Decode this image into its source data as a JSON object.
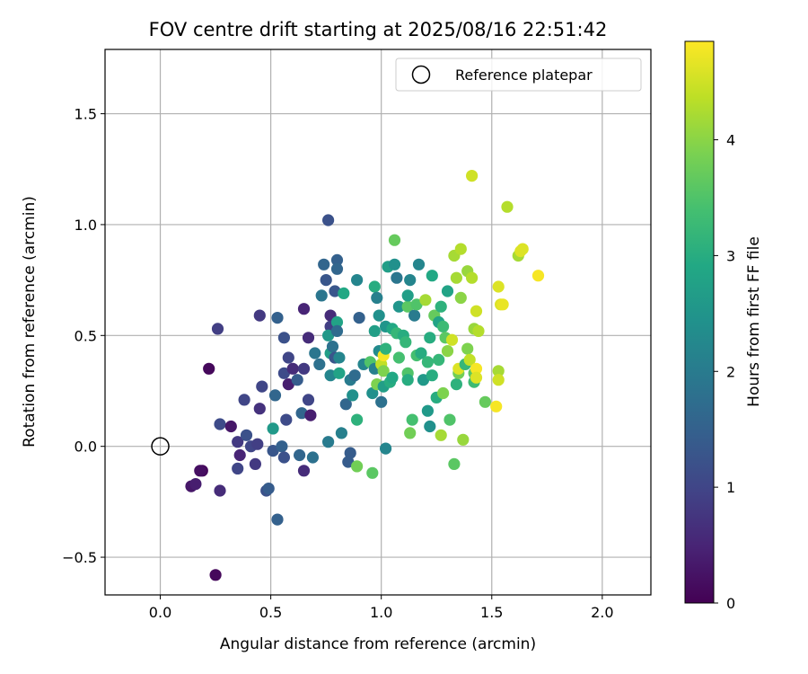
{
  "chart_data": {
    "type": "scatter",
    "title": "FOV centre drift starting at 2025/08/16 22:51:42",
    "xlabel": "Angular distance from reference (arcmin)",
    "ylabel": "Rotation from reference (arcmin)",
    "xlim": [
      -0.25,
      2.22
    ],
    "ylim": [
      -0.67,
      1.79
    ],
    "xticks": [
      0.0,
      0.5,
      1.0,
      1.5,
      2.0
    ],
    "xtick_labels": [
      "0.0",
      "0.5",
      "1.0",
      "1.5",
      "2.0"
    ],
    "yticks": [
      -0.5,
      0.0,
      0.5,
      1.0,
      1.5
    ],
    "ytick_labels": [
      "−0.5",
      "0.0",
      "0.5",
      "1.0",
      "1.5"
    ],
    "grid": true,
    "legend": {
      "placement": "top-right",
      "entries": [
        "Reference platepar"
      ]
    },
    "reference_point": {
      "x": 0.0,
      "y": 0.0,
      "label": "Reference platepar"
    },
    "colorbar": {
      "label": "Hours from first FF file",
      "colormap": "viridis",
      "range": [
        0,
        4.85
      ],
      "ticks": [
        0,
        1,
        2,
        3,
        4
      ],
      "tick_labels": [
        "0",
        "1",
        "2",
        "3",
        "4"
      ]
    },
    "points": [
      [
        0.22,
        0.35,
        0.1
      ],
      [
        0.26,
        0.53,
        0.9
      ],
      [
        0.19,
        -0.11,
        0.1
      ],
      [
        0.18,
        -0.11,
        0.2
      ],
      [
        0.14,
        -0.18,
        0.3
      ],
      [
        0.16,
        -0.17,
        0.4
      ],
      [
        0.25,
        -0.58,
        0.1
      ],
      [
        0.27,
        -0.2,
        0.6
      ],
      [
        0.27,
        0.1,
        1.1
      ],
      [
        0.32,
        0.09,
        0.3
      ],
      [
        0.35,
        0.02,
        0.8
      ],
      [
        0.36,
        -0.04,
        0.5
      ],
      [
        0.35,
        -0.1,
        1.0
      ],
      [
        0.38,
        0.21,
        1.0
      ],
      [
        0.39,
        0.05,
        1.2
      ],
      [
        0.41,
        0.0,
        1.0
      ],
      [
        0.43,
        -0.08,
        0.8
      ],
      [
        0.44,
        0.01,
        0.9
      ],
      [
        0.45,
        0.17,
        0.7
      ],
      [
        0.46,
        0.27,
        1.0
      ],
      [
        0.45,
        0.59,
        0.8
      ],
      [
        0.48,
        -0.2,
        1.2
      ],
      [
        0.49,
        -0.19,
        1.4
      ],
      [
        0.51,
        -0.02,
        1.3
      ],
      [
        0.51,
        0.08,
        2.6
      ],
      [
        0.52,
        0.23,
        1.6
      ],
      [
        0.53,
        0.58,
        1.5
      ],
      [
        0.53,
        -0.33,
        1.5
      ],
      [
        0.55,
        0.0,
        1.5
      ],
      [
        0.56,
        0.49,
        1.2
      ],
      [
        0.56,
        0.33,
        1.1
      ],
      [
        0.56,
        -0.05,
        1.2
      ],
      [
        0.57,
        0.12,
        1.1
      ],
      [
        0.58,
        0.28,
        0.4
      ],
      [
        0.58,
        0.4,
        1.0
      ],
      [
        0.6,
        0.35,
        0.6
      ],
      [
        0.62,
        0.3,
        1.4
      ],
      [
        0.63,
        -0.04,
        1.6
      ],
      [
        0.64,
        0.15,
        1.6
      ],
      [
        0.65,
        0.62,
        0.5
      ],
      [
        0.65,
        -0.11,
        0.6
      ],
      [
        0.65,
        0.35,
        0.8
      ],
      [
        0.67,
        0.49,
        0.6
      ],
      [
        0.67,
        0.21,
        1.0
      ],
      [
        0.68,
        0.14,
        0.4
      ],
      [
        0.69,
        -0.05,
        1.8
      ],
      [
        0.7,
        0.42,
        1.9
      ],
      [
        0.72,
        0.37,
        1.8
      ],
      [
        0.73,
        0.68,
        1.9
      ],
      [
        0.74,
        0.82,
        1.6
      ],
      [
        0.75,
        0.75,
        1.3
      ],
      [
        0.76,
        1.02,
        1.2
      ],
      [
        0.76,
        0.02,
        2.0
      ],
      [
        0.77,
        0.59,
        0.6
      ],
      [
        0.77,
        0.54,
        0.9
      ],
      [
        0.76,
        0.5,
        2.6
      ],
      [
        0.77,
        0.42,
        2.7
      ],
      [
        0.77,
        0.32,
        2.2
      ],
      [
        0.78,
        0.45,
        1.8
      ],
      [
        0.79,
        0.4,
        1.3
      ],
      [
        0.79,
        0.7,
        1.3
      ],
      [
        0.8,
        0.84,
        1.5
      ],
      [
        0.8,
        0.8,
        1.6
      ],
      [
        0.8,
        0.56,
        2.8
      ],
      [
        0.8,
        0.52,
        1.7
      ],
      [
        0.81,
        0.33,
        2.8
      ],
      [
        0.81,
        0.4,
        2.2
      ],
      [
        0.82,
        0.06,
        2.1
      ],
      [
        0.83,
        0.69,
        2.9
      ],
      [
        0.84,
        0.19,
        1.6
      ],
      [
        0.85,
        -0.07,
        1.4
      ],
      [
        0.86,
        -0.03,
        1.4
      ],
      [
        0.86,
        0.3,
        2.0
      ],
      [
        0.87,
        0.23,
        2.4
      ],
      [
        0.88,
        0.32,
        1.7
      ],
      [
        0.89,
        0.12,
        3.1
      ],
      [
        0.89,
        -0.09,
        3.8
      ],
      [
        0.9,
        0.58,
        1.5
      ],
      [
        0.89,
        0.75,
        2.2
      ],
      [
        0.92,
        0.37,
        2.2
      ],
      [
        0.95,
        0.38,
        3.5
      ],
      [
        0.96,
        -0.12,
        3.6
      ],
      [
        0.96,
        0.24,
        2.4
      ],
      [
        0.97,
        0.72,
        3.0
      ],
      [
        0.97,
        0.35,
        2.1
      ],
      [
        0.97,
        0.52,
        2.7
      ],
      [
        0.98,
        0.67,
        2.1
      ],
      [
        0.98,
        0.28,
        3.9
      ],
      [
        0.99,
        0.59,
        2.4
      ],
      [
        0.99,
        0.43,
        2.3
      ],
      [
        1.0,
        0.2,
        1.8
      ],
      [
        1.0,
        0.37,
        4.4
      ],
      [
        1.01,
        0.27,
        2.7
      ],
      [
        1.01,
        0.34,
        3.9
      ],
      [
        1.01,
        0.41,
        4.8
      ],
      [
        1.02,
        -0.01,
        2.2
      ],
      [
        1.02,
        0.44,
        3.1
      ],
      [
        1.02,
        0.54,
        2.5
      ],
      [
        1.03,
        0.81,
        2.7
      ],
      [
        1.04,
        0.29,
        3.0
      ],
      [
        1.05,
        0.53,
        2.9
      ],
      [
        1.05,
        0.31,
        2.9
      ],
      [
        1.06,
        0.82,
        2.4
      ],
      [
        1.06,
        0.93,
        3.7
      ],
      [
        1.07,
        0.76,
        1.9
      ],
      [
        1.07,
        0.51,
        3.2
      ],
      [
        1.08,
        0.63,
        2.5
      ],
      [
        1.08,
        0.4,
        3.4
      ],
      [
        1.1,
        0.5,
        3.0
      ],
      [
        1.11,
        0.47,
        3.2
      ],
      [
        1.12,
        0.33,
        3.5
      ],
      [
        1.12,
        0.63,
        3.6
      ],
      [
        1.12,
        0.68,
        2.7
      ],
      [
        1.12,
        0.3,
        3.0
      ],
      [
        1.13,
        0.75,
        2.2
      ],
      [
        1.13,
        0.06,
        3.8
      ],
      [
        1.14,
        0.12,
        3.4
      ],
      [
        1.15,
        0.59,
        2.0
      ],
      [
        1.16,
        0.41,
        3.4
      ],
      [
        1.16,
        0.64,
        3.5
      ],
      [
        1.17,
        0.82,
        2.2
      ],
      [
        1.18,
        0.42,
        3.0
      ],
      [
        1.19,
        0.3,
        2.6
      ],
      [
        1.2,
        0.66,
        4.2
      ],
      [
        1.21,
        0.16,
        2.6
      ],
      [
        1.21,
        0.38,
        3.2
      ],
      [
        1.22,
        0.49,
        3.0
      ],
      [
        1.22,
        0.09,
        2.4
      ],
      [
        1.23,
        0.32,
        3.0
      ],
      [
        1.23,
        0.77,
        2.9
      ],
      [
        1.24,
        0.59,
        3.7
      ],
      [
        1.25,
        0.22,
        3.0
      ],
      [
        1.26,
        0.56,
        2.8
      ],
      [
        1.26,
        0.39,
        3.2
      ],
      [
        1.27,
        0.63,
        3.1
      ],
      [
        1.27,
        0.05,
        4.2
      ],
      [
        1.28,
        0.54,
        3.3
      ],
      [
        1.28,
        0.24,
        3.9
      ],
      [
        1.29,
        0.49,
        3.6
      ],
      [
        1.3,
        0.43,
        4.0
      ],
      [
        1.3,
        0.7,
        2.8
      ],
      [
        1.31,
        0.12,
        3.5
      ],
      [
        1.32,
        0.48,
        4.5
      ],
      [
        1.33,
        0.86,
        4.2
      ],
      [
        1.33,
        -0.08,
        3.6
      ],
      [
        1.34,
        0.28,
        3.1
      ],
      [
        1.34,
        0.76,
        4.2
      ],
      [
        1.35,
        0.33,
        3.8
      ],
      [
        1.35,
        0.35,
        4.6
      ],
      [
        1.36,
        0.67,
        4.0
      ],
      [
        1.36,
        0.89,
        4.3
      ],
      [
        1.37,
        0.03,
        4.1
      ],
      [
        1.38,
        0.37,
        3.2
      ],
      [
        1.39,
        0.79,
        4.1
      ],
      [
        1.39,
        0.44,
        3.9
      ],
      [
        1.4,
        0.39,
        4.4
      ],
      [
        1.41,
        0.76,
        4.3
      ],
      [
        1.41,
        1.22,
        4.5
      ],
      [
        1.42,
        0.33,
        3.6
      ],
      [
        1.42,
        0.29,
        3.3
      ],
      [
        1.42,
        0.53,
        4.1
      ],
      [
        1.43,
        0.35,
        4.8
      ],
      [
        1.43,
        0.61,
        4.5
      ],
      [
        1.43,
        0.31,
        4.6
      ],
      [
        1.44,
        0.52,
        4.3
      ],
      [
        1.47,
        0.2,
        3.7
      ],
      [
        1.52,
        0.18,
        4.8
      ],
      [
        1.53,
        0.72,
        4.6
      ],
      [
        1.53,
        0.34,
        4.2
      ],
      [
        1.53,
        0.3,
        4.5
      ],
      [
        1.54,
        0.64,
        4.6
      ],
      [
        1.55,
        0.64,
        4.7
      ],
      [
        1.57,
        1.08,
        4.3
      ],
      [
        1.62,
        0.86,
        4.2
      ],
      [
        1.63,
        0.88,
        4.6
      ],
      [
        1.64,
        0.89,
        4.6
      ],
      [
        1.71,
        0.77,
        4.8
      ]
    ]
  }
}
